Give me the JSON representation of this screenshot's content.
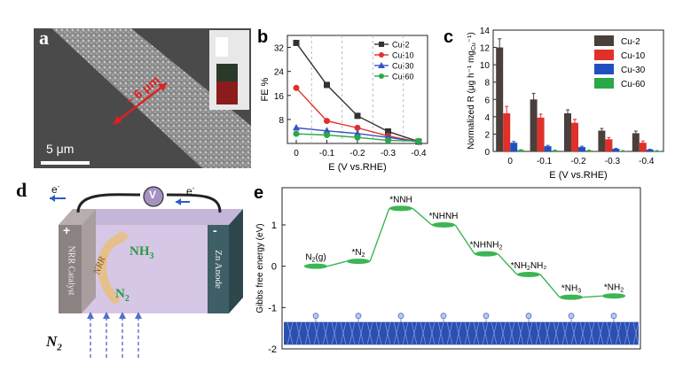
{
  "panels": {
    "a": {
      "label": "a",
      "scalebar": "5 μm",
      "annotation": "~ 6 μm"
    },
    "d": {
      "label": "d",
      "n2_outside": "N",
      "n2_outside_sub": "2",
      "electron_left": "e",
      "electron_right": "e",
      "electron_sup": "-",
      "voltmeter": "V",
      "plus": "+",
      "minus": "-",
      "nh3": "NH",
      "nh3_sub": "3",
      "n2_inside": "N",
      "n2_inside_sub": "2",
      "nrr_arrow": "NRR",
      "cathode": "NRR Catalyst",
      "anode": "Zn Anode"
    }
  },
  "chart_data": [
    {
      "panel": "b",
      "type": "line",
      "label": "b",
      "ylabel": "FE %",
      "xlabel": "E (V vs.RHE)",
      "x": [
        0,
        -0.1,
        -0.2,
        -0.3,
        -0.4
      ],
      "x_tick_labels": [
        "0",
        "-0.1",
        "-0.2",
        "-0.3",
        "-0.4"
      ],
      "y_tick_labels": [
        "0",
        "8",
        "16",
        "24",
        "32"
      ],
      "ylim": [
        0,
        36
      ],
      "series": [
        {
          "name": "Cu-2",
          "values": [
            33.5,
            19.5,
            9.2,
            4.0,
            0.6
          ],
          "color": "#333333",
          "marker": "square"
        },
        {
          "name": "Cu-10",
          "values": [
            18.5,
            7.5,
            5.2,
            2.5,
            0.5
          ],
          "color": "#e0302a",
          "marker": "circle"
        },
        {
          "name": "Cu-30",
          "values": [
            5.2,
            4.2,
            3.3,
            2.0,
            0.5
          ],
          "color": "#3a52c4",
          "marker": "triangle"
        },
        {
          "name": "Cu-60",
          "values": [
            3.2,
            2.8,
            2.0,
            1.0,
            0.8
          ],
          "color": "#2aa84a",
          "marker": "circle"
        }
      ],
      "legend": "top-right"
    },
    {
      "panel": "c",
      "type": "bar",
      "label": "c",
      "ylabel": "Normalized R (μg h⁻¹ mg",
      "ylabel_sub": "Cu",
      "ylabel_end": "⁻¹)",
      "xlabel": "E (V vs.RHE)",
      "categories": [
        "0",
        "-0.1",
        "-0.2",
        "-0.3",
        "-0.4"
      ],
      "y_tick_labels": [
        "0",
        "2",
        "4",
        "6",
        "8",
        "10",
        "12",
        "14"
      ],
      "ylim": [
        0,
        14
      ],
      "series": [
        {
          "name": "Cu-2",
          "values": [
            12.0,
            6.0,
            4.4,
            2.4,
            2.1
          ],
          "errors": [
            1.0,
            0.7,
            0.4,
            0.25,
            0.25
          ],
          "color": "#4a3f3a"
        },
        {
          "name": "Cu-10",
          "values": [
            4.4,
            3.9,
            3.3,
            1.4,
            1.0
          ],
          "errors": [
            0.8,
            0.4,
            0.4,
            0.2,
            0.2
          ],
          "color": "#e0302a"
        },
        {
          "name": "Cu-30",
          "values": [
            1.0,
            0.6,
            0.5,
            0.3,
            0.2
          ],
          "errors": [
            0.15,
            0.1,
            0.1,
            0.05,
            0.05
          ],
          "color": "#2050c0"
        },
        {
          "name": "Cu-60",
          "values": [
            0.15,
            0.1,
            0.1,
            0.05,
            0.05
          ],
          "errors": [
            0.05,
            0.05,
            0.05,
            0.05,
            0.05
          ],
          "color": "#2aa84a"
        }
      ],
      "legend": "top-right"
    },
    {
      "panel": "e",
      "type": "line",
      "label": "e",
      "ylabel": "Gibbs free energy (eV)",
      "y_tick_labels": [
        "-2",
        "-1",
        "0",
        "1"
      ],
      "ylim": [
        -2,
        1.9
      ],
      "steps": [
        {
          "label": "N",
          "sub": "2",
          "tail": "(g)",
          "value": 0.0
        },
        {
          "label": "*N",
          "sub": "2",
          "tail": "",
          "value": 0.12
        },
        {
          "label": "*NNH",
          "sub": "",
          "tail": "",
          "value": 1.4
        },
        {
          "label": "*NHNH",
          "sub": "",
          "tail": "",
          "value": 1.0
        },
        {
          "label": "*NHNH",
          "sub": "2",
          "tail": "",
          "value": 0.3
        },
        {
          "label": "*NH",
          "sub": "2",
          "tail": "NH₂",
          "value": -0.2
        },
        {
          "label": "*NH",
          "sub": "3",
          "tail": "",
          "value": -0.75
        },
        {
          "label": "*NH",
          "sub": "2",
          "tail": "",
          "value": -0.72
        }
      ],
      "color": "#3cb554"
    }
  ]
}
